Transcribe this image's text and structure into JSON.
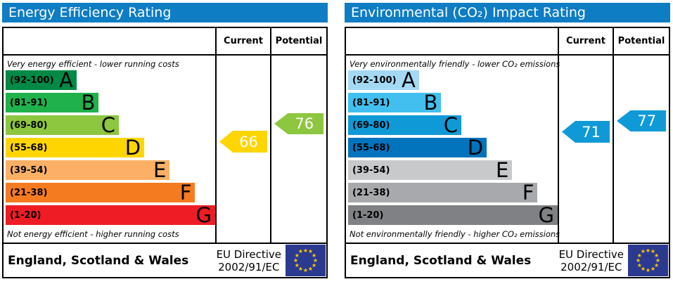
{
  "colors": {
    "header_bg": "#0e7dc4",
    "flag_bg": "#2b3990",
    "flag_star": "#ffcc00",
    "border": "#000000"
  },
  "panels": [
    {
      "title": "Energy Efficiency Rating",
      "current_header": "Current",
      "potential_header": "Potential",
      "top_caption": "Very energy efficient - lower running costs",
      "bottom_caption": "Not energy efficient - higher running costs",
      "bands": [
        {
          "range": "(92-100)",
          "letter": "A",
          "color": "#008a45",
          "width_pct": 33.5
        },
        {
          "range": "(81-91)",
          "letter": "B",
          "color": "#1fb14c",
          "width_pct": 44
        },
        {
          "range": "(69-80)",
          "letter": "C",
          "color": "#8dc63f",
          "width_pct": 53.5
        },
        {
          "range": "(55-68)",
          "letter": "D",
          "color": "#ffd500",
          "width_pct": 65.5
        },
        {
          "range": "(39-54)",
          "letter": "E",
          "color": "#fbb066",
          "width_pct": 77.5
        },
        {
          "range": "(21-38)",
          "letter": "F",
          "color": "#f47b20",
          "width_pct": 89.5
        },
        {
          "range": "(1-20)",
          "letter": "G",
          "color": "#ee1c25",
          "width_pct": 99
        }
      ],
      "current": {
        "value": "66",
        "color": "#ffd500"
      },
      "potential": {
        "value": "76",
        "color": "#8dc63f"
      },
      "footer_region": "England, Scotland & Wales",
      "directive_line1": "EU Directive",
      "directive_line2": "2002/91/EC"
    },
    {
      "title": "Environmental (CO₂) Impact Rating",
      "current_header": "Current",
      "potential_header": "Potential",
      "top_caption": "Very environmentally friendly - lower CO₂ emissions",
      "bottom_caption": "Not environmentally friendly - higher CO₂ emissions",
      "bands": [
        {
          "range": "(92-100)",
          "letter": "A",
          "color": "#a4d9f4",
          "width_pct": 33.5
        },
        {
          "range": "(81-91)",
          "letter": "B",
          "color": "#42bfef",
          "width_pct": 44
        },
        {
          "range": "(69-80)",
          "letter": "C",
          "color": "#0f9ad7",
          "width_pct": 53.5
        },
        {
          "range": "(55-68)",
          "letter": "D",
          "color": "#0273bd",
          "width_pct": 65.5
        },
        {
          "range": "(39-54)",
          "letter": "E",
          "color": "#c8c9cb",
          "width_pct": 77.5
        },
        {
          "range": "(21-38)",
          "letter": "F",
          "color": "#a7a9ac",
          "width_pct": 89.5
        },
        {
          "range": "(1-20)",
          "letter": "G",
          "color": "#7f8184",
          "width_pct": 99
        }
      ],
      "current": {
        "value": "71",
        "color": "#0f9ad7"
      },
      "potential": {
        "value": "77",
        "color": "#0f9ad7"
      },
      "footer_region": "England, Scotland & Wales",
      "directive_line1": "EU Directive",
      "directive_line2": "2002/91/EC"
    }
  ],
  "chart_data": [
    {
      "type": "bar",
      "title": "Energy Efficiency Rating",
      "subtitle_top": "Very energy efficient - lower running costs",
      "subtitle_bottom": "Not energy efficient - higher running costs",
      "categories": [
        "A",
        "B",
        "C",
        "D",
        "E",
        "F",
        "G"
      ],
      "band_ranges": [
        "92-100",
        "81-91",
        "69-80",
        "55-68",
        "39-54",
        "21-38",
        "1-20"
      ],
      "band_colors": [
        "#008a45",
        "#1fb14c",
        "#8dc63f",
        "#ffd500",
        "#fbb066",
        "#f47b20",
        "#ee1c25"
      ],
      "bar_lengths_pct": [
        33.5,
        44,
        53.5,
        65.5,
        77.5,
        89.5,
        99
      ],
      "current": 66,
      "current_band": "D",
      "potential": 76,
      "potential_band": "C",
      "columns": [
        "Current",
        "Potential"
      ],
      "region": "England, Scotland & Wales",
      "directive": "EU Directive 2002/91/EC"
    },
    {
      "type": "bar",
      "title": "Environmental (CO₂) Impact Rating",
      "subtitle_top": "Very environmentally friendly - lower CO₂ emissions",
      "subtitle_bottom": "Not environmentally friendly - higher CO₂ emissions",
      "categories": [
        "A",
        "B",
        "C",
        "D",
        "E",
        "F",
        "G"
      ],
      "band_ranges": [
        "92-100",
        "81-91",
        "69-80",
        "55-68",
        "39-54",
        "21-38",
        "1-20"
      ],
      "band_colors": [
        "#a4d9f4",
        "#42bfef",
        "#0f9ad7",
        "#0273bd",
        "#c8c9cb",
        "#a7a9ac",
        "#7f8184"
      ],
      "bar_lengths_pct": [
        33.5,
        44,
        53.5,
        65.5,
        77.5,
        89.5,
        99
      ],
      "current": 71,
      "current_band": "C",
      "potential": 77,
      "potential_band": "C",
      "columns": [
        "Current",
        "Potential"
      ],
      "region": "England, Scotland & Wales",
      "directive": "EU Directive 2002/91/EC"
    }
  ]
}
